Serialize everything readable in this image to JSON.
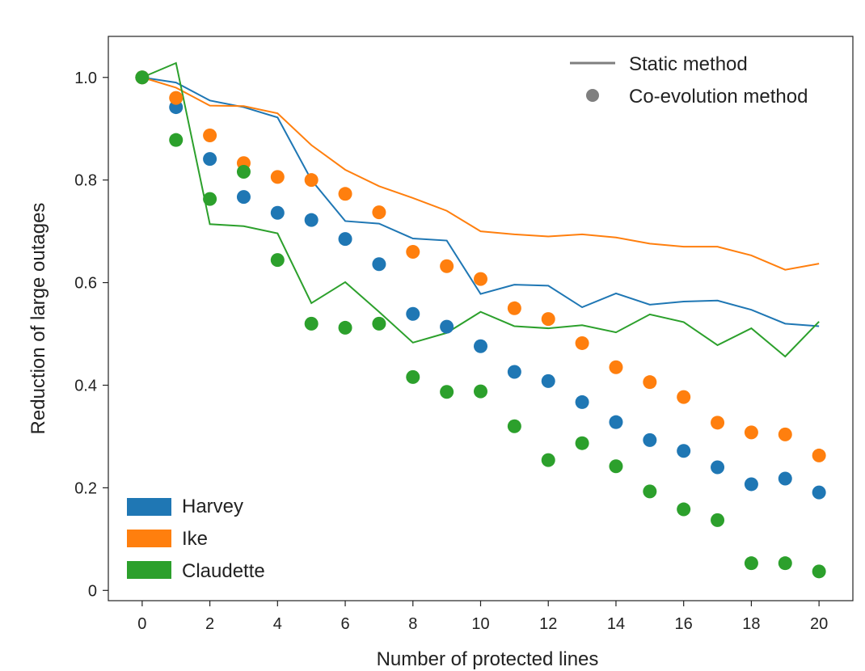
{
  "chart_data": {
    "type": "line+scatter",
    "title": "",
    "xlabel": "Number of protected lines",
    "ylabel": "Reduction of large outages",
    "xlim": [
      -1,
      21
    ],
    "ylim": [
      -0.02,
      1.08
    ],
    "x": [
      0,
      1,
      2,
      3,
      4,
      5,
      6,
      7,
      8,
      9,
      10,
      11,
      12,
      13,
      14,
      15,
      16,
      17,
      18,
      19,
      20
    ],
    "xticks": [
      0,
      2,
      4,
      6,
      8,
      10,
      12,
      14,
      16,
      18,
      20
    ],
    "xtick_labels": [
      "0",
      "2",
      "4",
      "6",
      "8",
      "10",
      "12",
      "14",
      "16",
      "18",
      "20"
    ],
    "yticks": [
      0,
      0.2,
      0.4,
      0.6,
      0.8,
      1.0
    ],
    "ytick_labels": [
      "0",
      "0.2",
      "0.4",
      "0.6",
      "0.8",
      "1.0"
    ],
    "grid": false,
    "series": [
      {
        "name": "Harvey",
        "color": "#1f77b4",
        "static": [
          1.0,
          0.99,
          0.955,
          0.942,
          0.922,
          0.8,
          0.72,
          0.715,
          0.686,
          0.682,
          0.578,
          0.596,
          0.594,
          0.552,
          0.579,
          0.557,
          0.563,
          0.565,
          0.547,
          0.52,
          0.515
        ],
        "coevolution": [
          1.0,
          0.942,
          0.841,
          0.767,
          0.736,
          0.722,
          0.685,
          0.636,
          0.539,
          0.514,
          0.476,
          0.426,
          0.408,
          0.367,
          0.328,
          0.293,
          0.272,
          0.24,
          0.207,
          0.218,
          0.191
        ]
      },
      {
        "name": "Ike",
        "color": "#ff7f0e",
        "static": [
          1.0,
          0.98,
          0.945,
          0.944,
          0.93,
          0.868,
          0.82,
          0.788,
          0.765,
          0.74,
          0.7,
          0.694,
          0.69,
          0.694,
          0.688,
          0.676,
          0.67,
          0.67,
          0.653,
          0.625,
          0.637
        ],
        "coevolution": [
          1.0,
          0.96,
          0.887,
          0.833,
          0.806,
          0.8,
          0.773,
          0.737,
          0.66,
          0.632,
          0.607,
          0.55,
          0.529,
          0.482,
          0.435,
          0.406,
          0.377,
          0.327,
          0.308,
          0.304,
          0.263
        ]
      },
      {
        "name": "Claudette",
        "color": "#2ca02c",
        "static": [
          1.0,
          1.028,
          0.714,
          0.71,
          0.696,
          0.56,
          0.601,
          0.543,
          0.483,
          0.502,
          0.543,
          0.515,
          0.511,
          0.517,
          0.503,
          0.538,
          0.523,
          0.478,
          0.511,
          0.456,
          0.524
        ],
        "coevolution": [
          1.0,
          0.878,
          0.763,
          0.816,
          0.644,
          0.52,
          0.512,
          0.52,
          0.416,
          0.387,
          0.388,
          0.32,
          0.254,
          0.287,
          0.242,
          0.193,
          0.158,
          0.137,
          0.053,
          0.053,
          0.037
        ]
      }
    ],
    "legend_methods": {
      "placement": "top-right",
      "items": [
        {
          "label": "Static method",
          "marker": "line",
          "color": "#7f7f7f"
        },
        {
          "label": "Co-evolution method",
          "marker": "dot",
          "color": "#7f7f7f"
        }
      ]
    },
    "legend_events": {
      "placement": "bottom-left",
      "items": [
        "Harvey",
        "Ike",
        "Claudette"
      ]
    }
  }
}
